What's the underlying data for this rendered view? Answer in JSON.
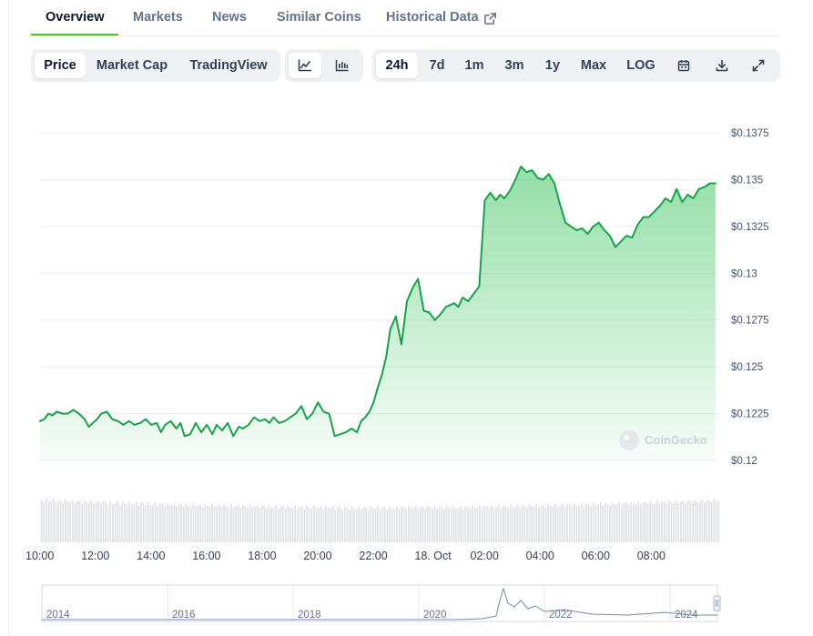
{
  "tabs": [
    {
      "label": "Overview"
    },
    {
      "label": "Markets"
    },
    {
      "label": "News"
    },
    {
      "label": "Similar Coins"
    },
    {
      "label": "Historical Data"
    }
  ],
  "toolbar": {
    "view_modes": [
      "Price",
      "Market Cap",
      "TradingView"
    ],
    "chart_types": [
      "line-chart-icon",
      "candlestick-icon"
    ],
    "ranges": [
      "24h",
      "7d",
      "1m",
      "3m",
      "1y",
      "Max",
      "LOG"
    ],
    "selected_range": "24h",
    "selected_view": "Price",
    "actions": [
      "calendar-icon",
      "download-icon",
      "expand-icon"
    ]
  },
  "watermark": "CoinGecko",
  "colors": {
    "line": "#16a34a",
    "fill_top": "#3cc55f",
    "active_tab": "#4bcc00"
  },
  "chart_data": {
    "type": "area",
    "title": "",
    "xlabel": "",
    "ylabel": "",
    "y_prefix": "$",
    "y_ticks": [
      "$0.12",
      "$0.1225",
      "$0.125",
      "$0.1275",
      "$0.13",
      "$0.1325",
      "$0.135",
      "$0.1375"
    ],
    "y_tick_values": [
      0.12,
      0.1225,
      0.125,
      0.1275,
      0.13,
      0.1325,
      0.135,
      0.1375
    ],
    "ylim": [
      0.12,
      0.1375
    ],
    "x_ticks": [
      "10:00",
      "12:00",
      "14:00",
      "16:00",
      "18:00",
      "20:00",
      "22:00",
      "18. Oct",
      "02:00",
      "04:00",
      "06:00",
      "08:00"
    ],
    "x_tick_hours": [
      0,
      2,
      4,
      6,
      8,
      10,
      12,
      14,
      16,
      18,
      20,
      22
    ],
    "xlim_hours": [
      0,
      24.4
    ],
    "grid": true,
    "series": [
      {
        "x_hours": [
          0.0,
          0.15,
          0.3,
          0.45,
          0.6,
          0.8,
          1.0,
          1.2,
          1.4,
          1.6,
          1.75,
          1.9,
          2.05,
          2.2,
          2.4,
          2.6,
          2.8,
          3.0,
          3.2,
          3.4,
          3.6,
          3.8,
          4.0,
          4.2,
          4.35,
          4.5,
          4.7,
          4.9,
          5.05,
          5.2,
          5.4,
          5.6,
          5.8,
          6.0,
          6.2,
          6.35,
          6.55,
          6.75,
          6.95,
          7.15,
          7.3,
          7.5,
          7.7,
          7.9,
          8.1,
          8.25,
          8.4,
          8.6,
          8.8,
          9.0,
          9.2,
          9.4,
          9.6,
          9.8,
          10.0,
          10.2,
          10.4,
          10.6,
          10.8,
          11.0,
          11.2,
          11.4,
          11.55,
          11.7,
          11.85,
          12.0,
          12.15,
          12.3,
          12.45,
          12.6,
          12.8,
          13.0,
          13.2,
          13.4,
          13.6,
          13.8,
          14.0,
          14.2,
          14.4,
          14.6,
          14.75,
          14.9,
          15.05,
          15.2,
          15.4,
          15.6,
          15.8,
          16.0,
          16.2,
          16.4,
          16.55,
          16.7,
          16.9,
          17.1,
          17.3,
          17.5,
          17.7,
          17.9,
          18.1,
          18.3,
          18.5,
          18.7,
          18.9,
          19.1,
          19.3,
          19.5,
          19.7,
          19.9,
          20.1,
          20.3,
          20.5,
          20.7,
          20.9,
          21.1,
          21.3,
          21.5,
          21.7,
          21.9,
          22.1,
          22.3,
          22.5,
          22.7,
          22.9,
          23.1,
          23.3,
          23.5,
          23.7,
          23.9,
          24.1,
          24.3
        ],
        "values": [
          0.1221,
          0.1222,
          0.1225,
          0.1224,
          0.1226,
          0.1225,
          0.1225,
          0.1227,
          0.1225,
          0.1222,
          0.1218,
          0.122,
          0.1222,
          0.1225,
          0.1226,
          0.1222,
          0.1221,
          0.1219,
          0.1221,
          0.1219,
          0.122,
          0.1222,
          0.1219,
          0.122,
          0.1215,
          0.1219,
          0.1221,
          0.1217,
          0.122,
          0.1213,
          0.1214,
          0.122,
          0.1215,
          0.1219,
          0.1214,
          0.1219,
          0.1216,
          0.122,
          0.1213,
          0.1218,
          0.1217,
          0.1219,
          0.1223,
          0.1221,
          0.1222,
          0.122,
          0.1223,
          0.122,
          0.1221,
          0.1223,
          0.1225,
          0.1229,
          0.1222,
          0.1225,
          0.1231,
          0.1226,
          0.1225,
          0.1213,
          0.1214,
          0.1215,
          0.1217,
          0.1215,
          0.1221,
          0.1223,
          0.1226,
          0.1231,
          0.1239,
          0.1246,
          0.1255,
          0.127,
          0.1277,
          0.1262,
          0.1285,
          0.1292,
          0.1297,
          0.128,
          0.1279,
          0.1275,
          0.1278,
          0.1282,
          0.1283,
          0.1284,
          0.1282,
          0.1287,
          0.1285,
          0.1289,
          0.1293,
          0.1339,
          0.1343,
          0.1339,
          0.1342,
          0.134,
          0.1344,
          0.135,
          0.1357,
          0.1354,
          0.1355,
          0.1351,
          0.135,
          0.1353,
          0.1348,
          0.1337,
          0.1327,
          0.1325,
          0.1323,
          0.1324,
          0.1321,
          0.1325,
          0.1327,
          0.1323,
          0.132,
          0.1314,
          0.1317,
          0.132,
          0.1319,
          0.1326,
          0.133,
          0.133,
          0.1333,
          0.1336,
          0.134,
          0.1338,
          0.1345,
          0.1338,
          0.1342,
          0.134,
          0.1345,
          0.1346,
          0.1348,
          0.1348
        ]
      }
    ],
    "navigator": {
      "year_labels": [
        "2014",
        "2016",
        "2018",
        "2020",
        "2022",
        "2024"
      ]
    }
  }
}
